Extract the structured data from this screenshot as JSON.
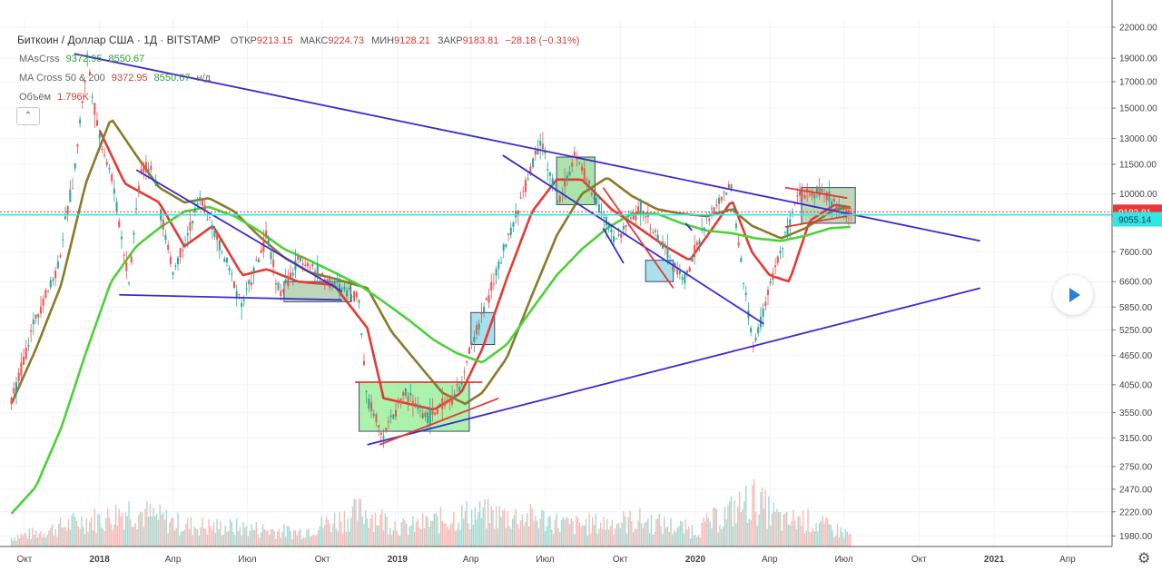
{
  "header": {
    "symbol_title": "Биткоин / Доллар США · 1Д · BITSTAMP",
    "ohlc": [
      {
        "label": "ОТКР",
        "value": "9213.15"
      },
      {
        "label": "МАКС",
        "value": "9224.73"
      },
      {
        "label": "МИН",
        "value": "9128.21"
      },
      {
        "label": "ЗАКР",
        "value": "9183.81"
      }
    ],
    "change": "−28.18 (−0.31%)"
  },
  "indicators": [
    {
      "name": "MAsCrss",
      "values": [
        "9372.95",
        "8550.67"
      ]
    },
    {
      "name": "MA Cross 50 & 200",
      "values": [
        "9372.95",
        "8550.67",
        "н/д"
      ]
    },
    {
      "name": "Объём",
      "values": [
        "1.796K"
      ]
    }
  ],
  "colors": {
    "up": "#26a69a",
    "down": "#ef5350",
    "ma_red": "#e53935",
    "ma_olive": "#8a7a2a",
    "ma_green": "#4cd137",
    "trend_blue": "#3d2ad1",
    "trend_red": "#e53935",
    "price_line": "#e53935",
    "cyan_line": "#33e6e6"
  },
  "chart_data": {
    "type": "line",
    "scale": "log",
    "ylim": [
      1900,
      22000
    ],
    "y_ticks": [
      "22000.00",
      "19000.00",
      "17000.00",
      "15000.00",
      "13000.00",
      "11500.00",
      "10000.00",
      "9000.00",
      "7600.00",
      "6600.00",
      "5850.00",
      "5250.00",
      "4650.00",
      "4050.00",
      "3550.00",
      "3150.00",
      "2750.00",
      "2470.00",
      "2220.00",
      "1980.00"
    ],
    "x_ticks": [
      "Окт",
      "2018",
      "Апр",
      "Июл",
      "Окт",
      "2019",
      "Апр",
      "Июл",
      "Окт",
      "2020",
      "Апр",
      "Июл",
      "Окт",
      "2021",
      "Апр"
    ],
    "price_label": "9183.81",
    "cyan_label": "9055.14",
    "price": [
      [
        "2017-09-15",
        3700
      ],
      [
        "2017-10-15",
        5600
      ],
      [
        "2017-11-10",
        7000
      ],
      [
        "2017-12-01",
        11000
      ],
      [
        "2017-12-17",
        19100
      ],
      [
        "2017-12-30",
        13500
      ],
      [
        "2018-01-16",
        10800
      ],
      [
        "2018-02-06",
        6600
      ],
      [
        "2018-02-20",
        11200
      ],
      [
        "2018-03-05",
        11400
      ],
      [
        "2018-04-01",
        6900
      ],
      [
        "2018-05-05",
        9800
      ],
      [
        "2018-06-25",
        5950
      ],
      [
        "2018-07-25",
        8200
      ],
      [
        "2018-08-10",
        6200
      ],
      [
        "2018-09-05",
        7400
      ],
      [
        "2018-10-10",
        6550
      ],
      [
        "2018-11-14",
        6200
      ],
      [
        "2018-11-25",
        3800
      ],
      [
        "2018-12-15",
        3200
      ],
      [
        "2019-01-10",
        3900
      ],
      [
        "2019-02-08",
        3450
      ],
      [
        "2019-03-20",
        4000
      ],
      [
        "2019-04-02",
        4900
      ],
      [
        "2019-05-15",
        7900
      ],
      [
        "2019-06-26",
        13000
      ],
      [
        "2019-07-17",
        9500
      ],
      [
        "2019-08-06",
        12000
      ],
      [
        "2019-09-25",
        8000
      ],
      [
        "2019-10-26",
        9400
      ],
      [
        "2019-12-17",
        6600
      ],
      [
        "2020-01-15",
        8800
      ],
      [
        "2020-02-13",
        10400
      ],
      [
        "2020-03-12",
        4800
      ],
      [
        "2020-04-05",
        6800
      ],
      [
        "2020-05-07",
        9900
      ],
      [
        "2020-06-01",
        10200
      ],
      [
        "2020-07-01",
        9200
      ],
      [
        "2020-07-10",
        9183
      ]
    ],
    "volume": [
      [
        "2017-09-15",
        0.2
      ],
      [
        "2017-10-20",
        0.3
      ],
      [
        "2017-12-10",
        0.55
      ],
      [
        "2018-01-10",
        0.6
      ],
      [
        "2018-02-05",
        0.8
      ],
      [
        "2018-04-15",
        0.45
      ],
      [
        "2018-06-25",
        0.4
      ],
      [
        "2018-09-01",
        0.3
      ],
      [
        "2018-11-20",
        0.75
      ],
      [
        "2019-01-10",
        0.4
      ],
      [
        "2019-04-02",
        0.7
      ],
      [
        "2019-06-26",
        0.6
      ],
      [
        "2019-08-01",
        0.45
      ],
      [
        "2019-10-26",
        0.55
      ],
      [
        "2020-01-01",
        0.35
      ],
      [
        "2020-03-12",
        1.0
      ],
      [
        "2020-04-20",
        0.5
      ],
      [
        "2020-05-07",
        0.6
      ],
      [
        "2020-07-10",
        0.25
      ]
    ],
    "series": [
      {
        "color": "#e53935",
        "points": [
          [
            "2018-01-01",
            13500
          ],
          [
            "2018-02-01",
            10500
          ],
          [
            "2018-03-15",
            9600
          ],
          [
            "2018-04-15",
            7800
          ],
          [
            "2018-05-20",
            8600
          ],
          [
            "2018-06-25",
            6800
          ],
          [
            "2018-07-25",
            7000
          ],
          [
            "2018-09-01",
            6600
          ],
          [
            "2018-10-15",
            6500
          ],
          [
            "2018-11-25",
            5300
          ],
          [
            "2018-12-15",
            3800
          ],
          [
            "2019-01-15",
            3700
          ],
          [
            "2019-02-15",
            3600
          ],
          [
            "2019-03-20",
            3900
          ],
          [
            "2019-04-15",
            4800
          ],
          [
            "2019-05-15",
            6700
          ],
          [
            "2019-06-15",
            9200
          ],
          [
            "2019-07-15",
            10700
          ],
          [
            "2019-08-15",
            10700
          ],
          [
            "2019-09-20",
            9300
          ],
          [
            "2019-10-20",
            8600
          ],
          [
            "2019-11-25",
            7800
          ],
          [
            "2019-12-25",
            7300
          ],
          [
            "2020-01-20",
            8400
          ],
          [
            "2020-02-15",
            9700
          ],
          [
            "2020-03-10",
            7600
          ],
          [
            "2020-04-01",
            6800
          ],
          [
            "2020-04-25",
            6600
          ],
          [
            "2020-05-20",
            8800
          ],
          [
            "2020-06-20",
            9500
          ],
          [
            "2020-07-10",
            9370
          ]
        ]
      },
      {
        "color": "#8a7a2a",
        "points": [
          [
            "2017-09-15",
            3700
          ],
          [
            "2017-10-15",
            4800
          ],
          [
            "2017-11-15",
            6500
          ],
          [
            "2017-12-15",
            10500
          ],
          [
            "2018-01-15",
            14300
          ],
          [
            "2018-02-15",
            12000
          ],
          [
            "2018-03-15",
            10300
          ],
          [
            "2018-04-15",
            9600
          ],
          [
            "2018-05-15",
            9800
          ],
          [
            "2018-06-15",
            9200
          ],
          [
            "2018-07-15",
            8200
          ],
          [
            "2018-08-15",
            7400
          ],
          [
            "2018-09-15",
            6900
          ],
          [
            "2018-10-15",
            6700
          ],
          [
            "2018-11-25",
            6400
          ],
          [
            "2018-12-25",
            5200
          ],
          [
            "2019-01-25",
            4500
          ],
          [
            "2019-02-25",
            3900
          ],
          [
            "2019-03-25",
            3700
          ],
          [
            "2019-04-15",
            3900
          ],
          [
            "2019-05-15",
            4600
          ],
          [
            "2019-06-15",
            6200
          ],
          [
            "2019-07-15",
            8200
          ],
          [
            "2019-08-15",
            10000
          ],
          [
            "2019-09-15",
            10800
          ],
          [
            "2019-10-15",
            9900
          ],
          [
            "2019-11-15",
            9300
          ],
          [
            "2019-12-15",
            9100
          ],
          [
            "2020-01-15",
            9000
          ],
          [
            "2020-02-15",
            9300
          ],
          [
            "2020-03-10",
            8600
          ],
          [
            "2020-04-15",
            8100
          ],
          [
            "2020-05-15",
            8500
          ],
          [
            "2020-06-20",
            9300
          ],
          [
            "2020-07-10",
            9372
          ]
        ]
      },
      {
        "color": "#4cd137",
        "points": [
          [
            "2017-09-15",
            2200
          ],
          [
            "2017-10-15",
            2500
          ],
          [
            "2017-11-15",
            3300
          ],
          [
            "2017-12-15",
            4700
          ],
          [
            "2018-01-15",
            6600
          ],
          [
            "2018-02-15",
            7800
          ],
          [
            "2018-03-15",
            8500
          ],
          [
            "2018-04-15",
            9200
          ],
          [
            "2018-05-15",
            9400
          ],
          [
            "2018-06-15",
            9000
          ],
          [
            "2018-07-15",
            8400
          ],
          [
            "2018-08-15",
            7700
          ],
          [
            "2018-09-15",
            7300
          ],
          [
            "2018-10-15",
            6900
          ],
          [
            "2018-11-15",
            6500
          ],
          [
            "2018-12-15",
            6000
          ],
          [
            "2019-01-15",
            5500
          ],
          [
            "2019-02-15",
            5000
          ],
          [
            "2019-03-15",
            4700
          ],
          [
            "2019-04-15",
            4500
          ],
          [
            "2019-05-15",
            4900
          ],
          [
            "2019-06-15",
            5800
          ],
          [
            "2019-07-15",
            6800
          ],
          [
            "2019-08-15",
            7700
          ],
          [
            "2019-09-15",
            8500
          ],
          [
            "2019-10-15",
            9100
          ],
          [
            "2019-11-15",
            9100
          ],
          [
            "2019-12-15",
            8700
          ],
          [
            "2020-01-15",
            8400
          ],
          [
            "2020-02-15",
            8300
          ],
          [
            "2020-03-15",
            8100
          ],
          [
            "2020-04-15",
            8000
          ],
          [
            "2020-05-15",
            8200
          ],
          [
            "2020-06-15",
            8500
          ],
          [
            "2020-07-10",
            8550
          ]
        ]
      }
    ],
    "trendlines": [
      {
        "color": "#3d2ad1",
        "from": [
          "2017-12-01",
          19400
        ],
        "to": [
          "2020-12-15",
          8000
        ]
      },
      {
        "color": "#3d2ad1",
        "from": [
          "2018-11-25",
          3050
        ],
        "to": [
          "2020-12-15",
          6400
        ]
      },
      {
        "color": "#3d2ad1",
        "from": [
          "2018-02-15",
          11200
        ],
        "to": [
          "2018-10-25",
          6300
        ]
      },
      {
        "color": "#3d2ad1",
        "from": [
          "2018-01-25",
          6200
        ],
        "to": [
          "2018-10-25",
          6050
        ]
      },
      {
        "color": "#3d2ad1",
        "from": [
          "2019-05-10",
          12000
        ],
        "to": [
          "2020-03-25",
          5400
        ]
      },
      {
        "color": "#3d2ad1",
        "from": [
          "2019-09-10",
          8500
        ],
        "to": [
          "2019-10-05",
          7200
        ]
      },
      {
        "color": "#3d2ad1",
        "from": [
          "2019-12-20",
          8700
        ],
        "to": [
          "2019-12-28",
          8400
        ]
      },
      {
        "color": "#e53935",
        "from": [
          "2018-11-10",
          4100
        ],
        "to": [
          "2019-04-15",
          4100
        ]
      },
      {
        "color": "#e53935",
        "from": [
          "2018-12-10",
          3050
        ],
        "to": [
          "2019-05-05",
          3800
        ]
      },
      {
        "color": "#e53935",
        "from": [
          "2019-09-10",
          10300
        ],
        "to": [
          "2019-12-05",
          6400
        ]
      },
      {
        "color": "#e53935",
        "from": [
          "2020-04-20",
          10300
        ],
        "to": [
          "2020-07-05",
          9800
        ]
      },
      {
        "color": "#e53935",
        "from": [
          "2020-04-20",
          8550
        ],
        "to": [
          "2020-07-05",
          9000
        ]
      }
    ],
    "boxes": [
      {
        "color": "#90ee90",
        "from": [
          "2018-11-15",
          4100
        ],
        "to": [
          "2019-03-30",
          3250
        ]
      },
      {
        "color": "#a8c9a0",
        "from": [
          "2018-08-15",
          6600
        ],
        "to": [
          "2018-11-05",
          6000
        ]
      },
      {
        "color": "#8ed6e6",
        "from": [
          "2019-04-01",
          5700
        ],
        "to": [
          "2019-04-30",
          4900
        ]
      },
      {
        "color": "#8fd98f",
        "from": [
          "2019-07-15",
          11900
        ],
        "to": [
          "2019-08-31",
          9500
        ]
      },
      {
        "color": "#8ed6e6",
        "from": [
          "2019-11-01",
          7300
        ],
        "to": [
          "2019-12-05",
          6600
        ]
      },
      {
        "color": "#a8c9a0",
        "from": [
          "2020-05-10",
          10300
        ],
        "to": [
          "2020-07-15",
          8700
        ]
      }
    ]
  }
}
